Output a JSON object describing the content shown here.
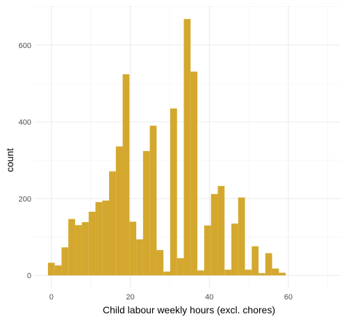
{
  "chart_data": {
    "type": "histogram",
    "title": "",
    "xlabel": "Child labour weekly hours (excl. chores)",
    "ylabel": "count",
    "xlim": [
      -4.2,
      73.2
    ],
    "ylim": [
      -33.5,
      703
    ],
    "x_ticks": [
      0,
      20,
      40,
      60
    ],
    "y_ticks": [
      0,
      200,
      400,
      600
    ],
    "grid": true,
    "bar_color": "#D4A82E",
    "bin_width": 1.72,
    "bins": [
      {
        "x0": -0.86,
        "count": 33
      },
      {
        "x0": 0.86,
        "count": 26
      },
      {
        "x0": 2.58,
        "count": 73
      },
      {
        "x0": 4.3,
        "count": 147
      },
      {
        "x0": 6.02,
        "count": 131
      },
      {
        "x0": 7.74,
        "count": 139
      },
      {
        "x0": 9.46,
        "count": 166
      },
      {
        "x0": 11.18,
        "count": 191
      },
      {
        "x0": 12.9,
        "count": 195
      },
      {
        "x0": 14.62,
        "count": 271
      },
      {
        "x0": 16.34,
        "count": 336
      },
      {
        "x0": 18.06,
        "count": 524
      },
      {
        "x0": 19.78,
        "count": 140
      },
      {
        "x0": 21.5,
        "count": 94
      },
      {
        "x0": 23.22,
        "count": 324
      },
      {
        "x0": 24.94,
        "count": 390
      },
      {
        "x0": 26.66,
        "count": 66
      },
      {
        "x0": 28.38,
        "count": 10
      },
      {
        "x0": 30.1,
        "count": 435
      },
      {
        "x0": 31.82,
        "count": 45
      },
      {
        "x0": 33.54,
        "count": 668
      },
      {
        "x0": 35.26,
        "count": 531
      },
      {
        "x0": 36.98,
        "count": 13
      },
      {
        "x0": 38.7,
        "count": 130
      },
      {
        "x0": 40.42,
        "count": 212
      },
      {
        "x0": 42.14,
        "count": 233
      },
      {
        "x0": 43.86,
        "count": 15
      },
      {
        "x0": 45.58,
        "count": 135
      },
      {
        "x0": 47.3,
        "count": 203
      },
      {
        "x0": 49.02,
        "count": 15
      },
      {
        "x0": 50.74,
        "count": 76
      },
      {
        "x0": 52.46,
        "count": 6
      },
      {
        "x0": 54.18,
        "count": 58
      },
      {
        "x0": 55.9,
        "count": 18
      },
      {
        "x0": 57.62,
        "count": 7
      }
    ]
  }
}
